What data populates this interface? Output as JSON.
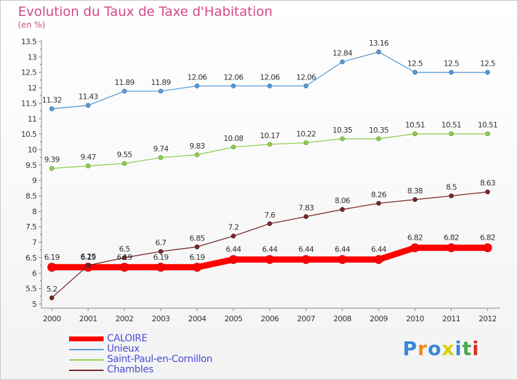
{
  "title": "Evolution du Taux de Taxe d'Habitation",
  "unit": "(en %)",
  "logo": {
    "text": "Proxiti",
    "letters": [
      {
        "ch": "P",
        "color": "#3a86d8"
      },
      {
        "ch": "r",
        "color": "#f28a1e"
      },
      {
        "ch": "o",
        "color": "#3a86d8"
      },
      {
        "ch": "x",
        "color": "#d8d000"
      },
      {
        "ch": "i",
        "color": "#3a86d8"
      },
      {
        "ch": "t",
        "color": "#4aa84a"
      },
      {
        "ch": "i",
        "color": "#e0302a"
      }
    ]
  },
  "chart_data": {
    "type": "line",
    "title": "Evolution du Taux de Taxe d'Habitation",
    "ylabel": "(en %)",
    "xlabel": "",
    "x": [
      "2000",
      "2001",
      "2002",
      "2003",
      "2004",
      "2005",
      "2006",
      "2007",
      "2008",
      "2009",
      "2010",
      "2011",
      "2012"
    ],
    "ylim": [
      5,
      13.5
    ],
    "yticks": [
      "5",
      "5.5",
      "6",
      "6.5",
      "7",
      "7.5",
      "8",
      "8.5",
      "9",
      "9.5",
      "10",
      "10.5",
      "11",
      "11.5",
      "12",
      "12.5",
      "13",
      "13.5"
    ],
    "grid": false,
    "legend_position": "bottom-left",
    "series": [
      {
        "name": "CALOIRE",
        "color": "#ff0000",
        "emphasis": true,
        "values": [
          6.19,
          6.19,
          6.19,
          6.19,
          6.19,
          6.44,
          6.44,
          6.44,
          6.44,
          6.44,
          6.82,
          6.82,
          6.82
        ],
        "labels": [
          "6.19",
          "6.19",
          "6.19",
          "6.19",
          "6.19",
          "6.44",
          "6.44",
          "6.44",
          "6.44",
          "6.44",
          "6.82",
          "6.82",
          "6.82"
        ]
      },
      {
        "name": "Unieux",
        "color": "#5b9bd5",
        "values": [
          11.32,
          11.43,
          11.89,
          11.89,
          12.06,
          12.06,
          12.06,
          12.06,
          12.84,
          13.16,
          12.5,
          12.5,
          12.5
        ],
        "labels": [
          "11.32",
          "11.43",
          "11.89",
          "11.89",
          "12.06",
          "12.06",
          "12.06",
          "12.06",
          "12.84",
          "13.16",
          "12.5",
          "12.5",
          "12.5"
        ]
      },
      {
        "name": "Saint-Paul-en-Cornillon",
        "color": "#92d050",
        "values": [
          9.39,
          9.47,
          9.55,
          9.74,
          9.83,
          10.08,
          10.17,
          10.22,
          10.35,
          10.35,
          10.51,
          10.51,
          10.51
        ],
        "labels": [
          "9.39",
          "9.47",
          "9.55",
          "9.74",
          "9.83",
          "10.08",
          "10.17",
          "10.22",
          "10.35",
          "10.35",
          "10.51",
          "10.51",
          "10.51"
        ]
      },
      {
        "name": "Chambles",
        "color": "#7a2a2a",
        "values": [
          5.2,
          6.25,
          6.5,
          6.7,
          6.85,
          7.2,
          7.6,
          7.83,
          8.06,
          8.26,
          8.38,
          8.5,
          8.63
        ],
        "labels": [
          "5.2",
          "6.25",
          "6.5",
          "6.7",
          "6.85",
          "7.2",
          "7.6",
          "7.83",
          "8.06",
          "8.26",
          "8.38",
          "8.5",
          "8.63"
        ]
      }
    ]
  }
}
